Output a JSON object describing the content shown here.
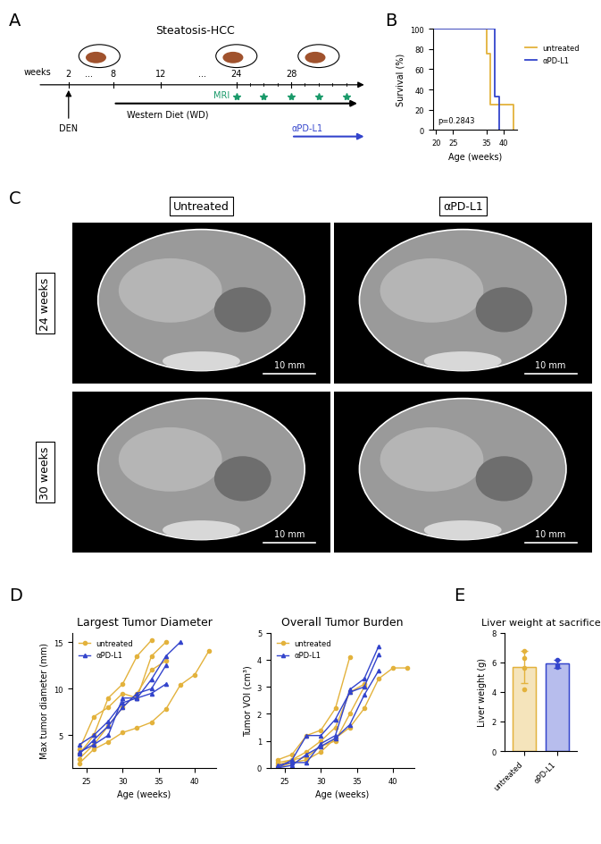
{
  "panel_labels": [
    "A",
    "B",
    "C",
    "D",
    "E"
  ],
  "diagram": {
    "title": "Steatosis-HCC",
    "axis_label": "weeks",
    "timeline": [
      "2",
      "...",
      "8",
      "12",
      "...",
      "24",
      "28"
    ],
    "den": "DEN",
    "diet": "Western Diet (WD)",
    "mri": "MRI",
    "mri_weeks": [
      24,
      26,
      28,
      30,
      32
    ],
    "treatment": "αPD-L1",
    "treatment_start_week": 28
  },
  "images": {
    "columns": [
      "Untreated",
      "αPD-L1"
    ],
    "rows": [
      "24 weeks",
      "30 weeks"
    ],
    "scale_bar": "10 mm"
  },
  "chart_data": [
    {
      "type": "step",
      "xlabel": "Age (weeks)",
      "ylabel": "Survival (%)",
      "xlim": [
        19,
        44
      ],
      "xticks": [
        20,
        25,
        35,
        40
      ],
      "ylim": [
        0,
        100
      ],
      "yticks": [
        0,
        20,
        40,
        60,
        80,
        100
      ],
      "legend": "right",
      "annotation": "p=0.2843",
      "series": [
        {
          "name": "untreated",
          "color": "#E3B23C",
          "x": [
            19,
            35,
            36,
            43
          ],
          "values": [
            100,
            75,
            25,
            0
          ]
        },
        {
          "name": "αPD-L1",
          "color": "#3344CC",
          "x": [
            19,
            37.3,
            38.7
          ],
          "values": [
            100,
            33.3,
            0
          ]
        }
      ]
    },
    {
      "type": "line",
      "title": "Largest Tumor Diameter",
      "xlabel": "Age (weeks)",
      "ylabel": "Max tumor diameter (mm)",
      "xlim": [
        23,
        43
      ],
      "xticks": [
        25,
        30,
        35,
        40
      ],
      "ylim": [
        1.5,
        16
      ],
      "yticks": [
        5,
        10,
        15
      ],
      "legend": "upper left",
      "series": [
        {
          "name": "untreated",
          "color": "#E3B23C",
          "marker": "circle",
          "lines": [
            {
              "x": [
                24,
                26,
                28,
                30,
                32,
                34
              ],
              "values": [
                3.0,
                5.0,
                9.0,
                10.5,
                13.5,
                15.2
              ]
            },
            {
              "x": [
                24,
                26,
                28,
                30,
                32,
                34,
                36
              ],
              "values": [
                3.5,
                7.0,
                8.0,
                9.5,
                9.0,
                13.5,
                15.0
              ]
            },
            {
              "x": [
                24,
                26,
                28,
                30,
                32,
                34,
                36,
                38,
                40,
                42
              ],
              "values": [
                2.0,
                3.5,
                4.3,
                5.3,
                5.8,
                6.4,
                7.8,
                10.4,
                11.5,
                14.1
              ]
            },
            {
              "x": [
                24,
                26,
                28,
                30,
                32,
                34,
                36
              ],
              "values": [
                2.5,
                4.0,
                6.0,
                8.0,
                9.5,
                12.0,
                13.0
              ]
            }
          ]
        },
        {
          "name": "αPD-L1",
          "color": "#3344CC",
          "marker": "triangle",
          "lines": [
            {
              "x": [
                24,
                26,
                28,
                30,
                32,
                34,
                36,
                38
              ],
              "values": [
                4.0,
                5.0,
                6.5,
                8.5,
                9.0,
                11.0,
                13.5,
                15.0
              ]
            },
            {
              "x": [
                24,
                26,
                28,
                30,
                32,
                34,
                36
              ],
              "values": [
                3.0,
                4.5,
                6.0,
                8.0,
                9.5,
                10.0,
                12.5
              ]
            },
            {
              "x": [
                24,
                26,
                28,
                30,
                32,
                34,
                36
              ],
              "values": [
                3.2,
                4.0,
                5.0,
                9.0,
                9.0,
                9.5,
                10.5
              ]
            }
          ]
        }
      ]
    },
    {
      "type": "line",
      "title": "Overall Tumor Burden",
      "xlabel": "Age (weeks)",
      "ylabel": "Tumor VOI (cm³)",
      "xlim": [
        23,
        43
      ],
      "xticks": [
        25,
        30,
        35,
        40
      ],
      "ylim": [
        0,
        5
      ],
      "yticks": [
        0,
        1,
        2,
        3,
        4,
        5
      ],
      "legend": "upper left",
      "series": [
        {
          "name": "untreated",
          "color": "#E3B23C",
          "marker": "circle",
          "lines": [
            {
              "x": [
                24,
                26,
                28,
                30,
                32,
                34
              ],
              "values": [
                0.3,
                0.5,
                1.2,
                1.4,
                2.2,
                4.1
              ]
            },
            {
              "x": [
                24,
                26,
                28,
                30,
                32,
                34,
                36
              ],
              "values": [
                0.1,
                0.3,
                0.6,
                1.0,
                1.5,
                2.8,
                3.1
              ]
            },
            {
              "x": [
                24,
                26,
                28,
                30,
                32,
                34,
                36,
                38,
                40,
                42
              ],
              "values": [
                0.0,
                0.2,
                0.3,
                0.6,
                1.1,
                1.5,
                2.2,
                3.3,
                3.7,
                3.7
              ]
            },
            {
              "x": [
                24,
                26,
                28,
                30,
                32,
                34,
                36
              ],
              "values": [
                0.2,
                0.3,
                0.4,
                0.8,
                1.0,
                2.0,
                3.0
              ]
            }
          ]
        },
        {
          "name": "αPD-L1",
          "color": "#3344CC",
          "marker": "triangle",
          "lines": [
            {
              "x": [
                24,
                26,
                28,
                30,
                32,
                34,
                36,
                38
              ],
              "values": [
                0.1,
                0.2,
                0.2,
                0.9,
                1.2,
                2.9,
                3.3,
                4.5
              ]
            },
            {
              "x": [
                24,
                26,
                28,
                30,
                32,
                34,
                36,
                38
              ],
              "values": [
                0.0,
                0.1,
                0.5,
                0.8,
                1.1,
                1.6,
                2.7,
                3.6
              ]
            },
            {
              "x": [
                24,
                26,
                28,
                30,
                32,
                34,
                36,
                38
              ],
              "values": [
                0.0,
                0.3,
                1.2,
                1.2,
                1.8,
                2.8,
                3.0,
                4.2
              ]
            }
          ]
        }
      ]
    },
    {
      "type": "bar",
      "title": "Liver weight at sacrifice",
      "ylabel": "Liver weight (g)",
      "categories": [
        "untreated",
        "αPD-L1"
      ],
      "values": [
        5.7,
        5.9
      ],
      "errors": [
        1.1,
        0.3
      ],
      "points": [
        [
          6.8,
          6.3,
          5.6,
          4.2
        ],
        [
          6.2,
          5.8,
          5.7
        ]
      ],
      "colors": [
        "#E3B23C",
        "#3344CC"
      ],
      "ylim": [
        0,
        8
      ],
      "yticks": [
        0,
        2,
        4,
        6,
        8
      ]
    }
  ]
}
